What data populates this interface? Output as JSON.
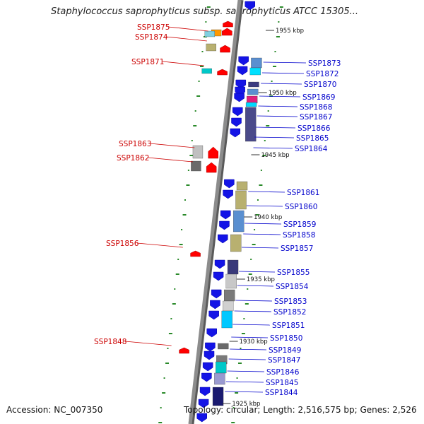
{
  "title": "Staphylococcus saprophyticus subsp. saprophyticus ATCC 15305...",
  "footer": {
    "accession": "Accession: NC_007350",
    "topology": "Topology: circular; Length: 2,516,575 bp; Genes: 2,526"
  },
  "colors": {
    "backbone": "#8c8c8c",
    "reverse_strand_text": "#cc0000",
    "forward_strand_text": "#0000cc",
    "reverse_arrow": "#ff0000",
    "forward_arrow": "#1414e6",
    "dotted_ring": "#2a8a2a"
  },
  "ticks": [
    "1955 kbp",
    "1950 kbp",
    "1945 kbp",
    "1940 kbp",
    "1935 kbp",
    "1930 kbp",
    "1925 kbp"
  ],
  "genes_reverse": [
    "SSP1875",
    "SSP1874",
    "SSP1871",
    "SSP1863",
    "SSP1862",
    "SSP1856",
    "SSP1848"
  ],
  "genes_forward": [
    "SSP1873",
    "SSP1872",
    "SSP1870",
    "SSP1869",
    "SSP1868",
    "SSP1867",
    "SSP1866",
    "SSP1865",
    "SSP1864",
    "SSP1861",
    "SSP1860",
    "SSP1859",
    "SSP1858",
    "SSP1857",
    "SSP1855",
    "SSP1854",
    "SSP1853",
    "SSP1852",
    "SSP1851",
    "SSP1850",
    "SSP1849",
    "SSP1847",
    "SSP1846",
    "SSP1845",
    "SSP1844"
  ]
}
